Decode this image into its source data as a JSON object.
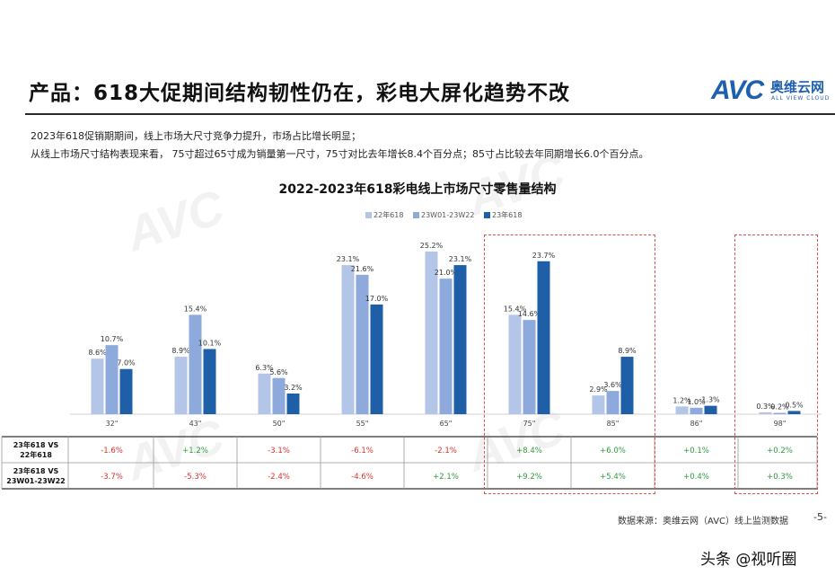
{
  "header": {
    "title": "产品：618大促期间结构韧性仍在，彩电大屏化趋势不改",
    "logo_mark": "AVC",
    "logo_cn": "奥维云网",
    "logo_en": "ALL VIEW CLOUD"
  },
  "description": {
    "line1": "2023年618促销期期间，线上市场大尺寸竞争力提升，市场占比增长明显；",
    "line2": "从线上市场尺寸结构表现来看， 75寸超过65寸成为销量第一尺寸，75寸对比去年增长8.4个百分点；85寸占比较去年同期增长6.0个百分点。"
  },
  "chart_data": {
    "type": "bar",
    "title": "2022-2023年618彩电线上市场尺寸零售量结构",
    "categories": [
      "32\"",
      "43\"",
      "50\"",
      "55\"",
      "65\"",
      "75\"",
      "85\"",
      "86\"",
      "98\""
    ],
    "series": [
      {
        "name": "22年618",
        "color": "#b4c6e7",
        "values": [
          8.6,
          8.9,
          6.3,
          23.1,
          25.2,
          15.4,
          2.9,
          1.2,
          0.3
        ],
        "labels": [
          "8.6%",
          "8.9%",
          "6.3%",
          "23.1%",
          "25.2%",
          "15.4%",
          "2.9%",
          "1.2%",
          "0.3%"
        ]
      },
      {
        "name": "23W01-23W22",
        "color": "#8ea9db",
        "values": [
          10.7,
          15.4,
          5.6,
          21.6,
          21.0,
          14.6,
          3.6,
          1.0,
          0.2
        ],
        "labels": [
          "10.7%",
          "15.4%",
          "5.6%",
          "21.6%",
          "21.0%",
          "14.6%",
          "3.6%",
          "1.0%",
          "0.2%"
        ]
      },
      {
        "name": "23年618",
        "color": "#1f5fa8",
        "values": [
          7.0,
          10.1,
          3.2,
          17.0,
          23.1,
          23.7,
          8.9,
          1.3,
          0.5
        ],
        "labels": [
          "7.0%",
          "10.1%",
          "3.2%",
          "17.0%",
          "23.1%",
          "23.7%",
          "8.9%",
          "1.3%",
          "0.5%"
        ]
      }
    ],
    "ylim": [
      0,
      28
    ],
    "legend_position": "top-right",
    "grid": false,
    "highlighted_categories": [
      "75\"",
      "85\"",
      "98\""
    ]
  },
  "diff_table": {
    "rows": [
      {
        "label_line1": "23年618 VS",
        "label_line2": "22年618",
        "values": [
          "-1.6%",
          "+1.2%",
          "-3.1%",
          "-6.1%",
          "-2.1%",
          "+8.4%",
          "+6.0%",
          "+0.1%",
          "+0.2%"
        ]
      },
      {
        "label_line1": "23年618 VS",
        "label_line2": "23W01-23W22",
        "values": [
          "-3.7%",
          "-5.3%",
          "-2.4%",
          "-4.6%",
          "+2.1%",
          "+9.2%",
          "+5.4%",
          "+0.4%",
          "+0.3%"
        ]
      }
    ],
    "positive_color": "#2e9a3e",
    "negative_color": "#d9312b"
  },
  "footer": {
    "source": "数据来源：奥维云网（AVC）线上监测数据",
    "page": "-5-",
    "credit": "头条 @视听圈"
  },
  "watermark": {
    "text": "AVC"
  }
}
